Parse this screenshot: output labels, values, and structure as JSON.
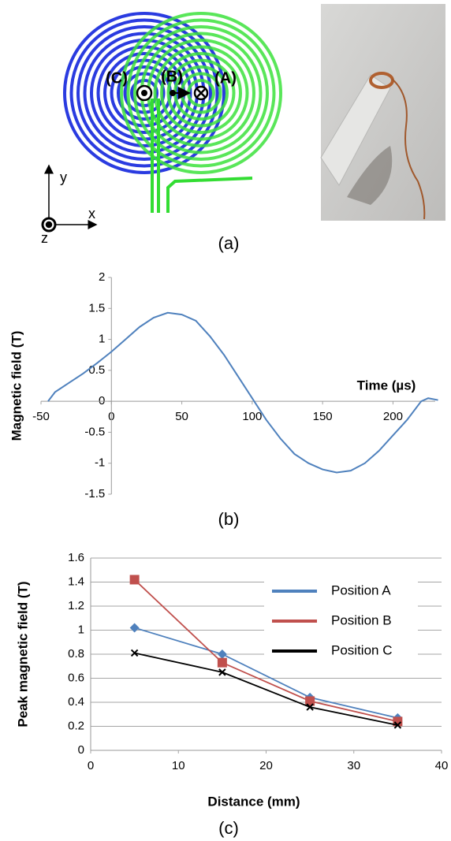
{
  "diagram": {
    "label_c": "(C)",
    "label_b": "(B)",
    "label_a": "(A)",
    "axis_y": "y",
    "axis_x": "x",
    "axis_z": "z",
    "caption": "(a)"
  },
  "chart_data": [
    {
      "type": "line",
      "caption": "(b)",
      "y_label": "Magnetic field (T)",
      "x_label": "Time (µs)",
      "x": [
        -45,
        -40,
        -30,
        -20,
        -10,
        0,
        10,
        20,
        30,
        40,
        50,
        60,
        70,
        80,
        90,
        100,
        110,
        120,
        130,
        140,
        150,
        160,
        170,
        180,
        190,
        200,
        210,
        220,
        225,
        232
      ],
      "values": [
        0,
        0.15,
        0.3,
        0.45,
        0.62,
        0.8,
        1.0,
        1.2,
        1.35,
        1.43,
        1.4,
        1.3,
        1.05,
        0.75,
        0.4,
        0.05,
        -0.3,
        -0.6,
        -0.85,
        -1.0,
        -1.1,
        -1.15,
        -1.12,
        -1.0,
        -0.8,
        -0.55,
        -0.3,
        0,
        0.05,
        0.02
      ],
      "color": "#4f81bd",
      "xlim": [
        -50,
        230
      ],
      "ylim": [
        -1.5,
        2
      ],
      "xticks": [
        -50,
        0,
        50,
        100,
        150,
        200
      ],
      "yticks": [
        2,
        1.5,
        1,
        0.5,
        0,
        -0.5,
        -1,
        -1.5
      ],
      "grid": false
    },
    {
      "type": "line",
      "caption": "(c)",
      "y_label": "Peak magnetic field (T)",
      "x_label": "Distance (mm)",
      "x": [
        5,
        15,
        25,
        35
      ],
      "series": [
        {
          "name": "Position A",
          "color": "#4f81bd",
          "marker": "diamond",
          "values": [
            1.02,
            0.8,
            0.44,
            0.27
          ]
        },
        {
          "name": "Position B",
          "color": "#c0504d",
          "marker": "square",
          "values": [
            1.42,
            0.73,
            0.41,
            0.24
          ]
        },
        {
          "name": "Position C",
          "color": "#000000",
          "marker": "x",
          "values": [
            0.81,
            0.65,
            0.36,
            0.21
          ]
        }
      ],
      "xlim": [
        0,
        40
      ],
      "ylim": [
        0,
        1.6
      ],
      "xticks": [
        0,
        10,
        20,
        30,
        40
      ],
      "yticks": [
        0,
        0.2,
        0.4,
        0.6,
        0.8,
        1,
        1.2,
        1.4,
        1.6
      ],
      "grid": true,
      "legend": "upper right"
    }
  ]
}
